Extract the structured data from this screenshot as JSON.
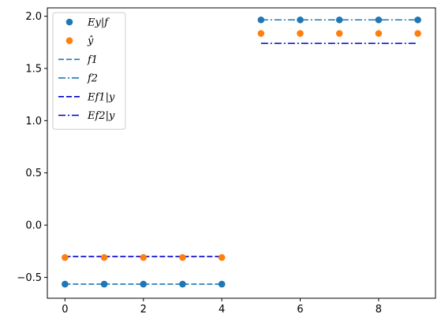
{
  "chart_data": {
    "type": "scatter",
    "xlim": [
      -0.45,
      9.45
    ],
    "ylim": [
      -0.7,
      2.08
    ],
    "xticks": [
      0,
      2,
      4,
      6,
      8
    ],
    "xtick_labels": [
      "0",
      "2",
      "4",
      "6",
      "8"
    ],
    "yticks": [
      -0.5,
      0.0,
      0.5,
      1.0,
      1.5,
      2.0
    ],
    "ytick_labels": [
      "−0.5",
      "0.0",
      "0.5",
      "1.0",
      "1.5",
      "2.0"
    ],
    "grid": false,
    "legend_position": "upper-left",
    "series": [
      {
        "name": "Ey|f",
        "kind": "scatter",
        "color": "#1f77b4",
        "x": [
          0,
          1,
          2,
          3,
          4,
          5,
          6,
          7,
          8,
          9
        ],
        "y": [
          -0.565,
          -0.565,
          -0.565,
          -0.565,
          -0.565,
          1.965,
          1.965,
          1.965,
          1.965,
          1.965
        ]
      },
      {
        "name": "ŷ",
        "kind": "scatter",
        "color": "#ff7f0e",
        "x": [
          0,
          1,
          2,
          3,
          4,
          5,
          6,
          7,
          8,
          9
        ],
        "y": [
          -0.31,
          -0.31,
          -0.31,
          -0.31,
          -0.31,
          1.835,
          1.835,
          1.835,
          1.835,
          1.835
        ]
      },
      {
        "name": "f1",
        "kind": "line",
        "dash": "dashed",
        "color": "#1f77b4",
        "x": [
          0,
          1,
          2,
          3,
          4
        ],
        "y": [
          -0.565,
          -0.565,
          -0.565,
          -0.565,
          -0.565
        ]
      },
      {
        "name": "f2",
        "kind": "line",
        "dash": "dashdot",
        "color": "#1f77b4",
        "x": [
          5,
          6,
          7,
          8,
          9
        ],
        "y": [
          1.965,
          1.965,
          1.965,
          1.965,
          1.965
        ]
      },
      {
        "name": "Ef1|y",
        "kind": "line",
        "dash": "dashed",
        "color": "#0000cc",
        "x": [
          0,
          1,
          2,
          3,
          4
        ],
        "y": [
          -0.3,
          -0.3,
          -0.3,
          -0.3,
          -0.3
        ]
      },
      {
        "name": "Ef2|y",
        "kind": "line",
        "dash": "dashdot",
        "color": "#0000cc",
        "x": [
          5,
          6,
          7,
          8,
          9
        ],
        "y": [
          1.74,
          1.74,
          1.74,
          1.74,
          1.74
        ]
      }
    ]
  }
}
